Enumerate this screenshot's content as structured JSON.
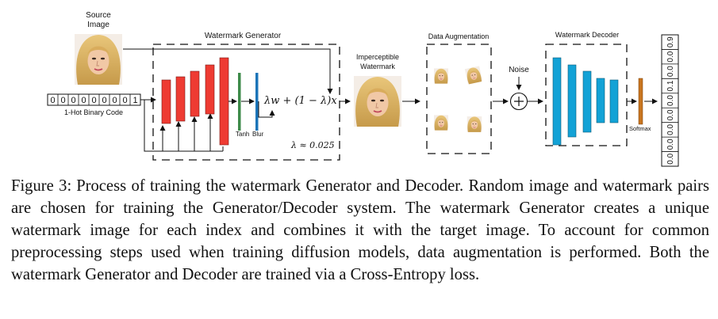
{
  "figure": {
    "source_image_label": [
      "Source",
      "Image"
    ],
    "binary_code_digits": [
      "0",
      "0",
      "0",
      "0",
      "0",
      "0",
      "0",
      "0",
      "1"
    ],
    "binary_code_label": "1-Hot Binary Code",
    "generator_title": "Watermark Generator",
    "tanh_label": "Tanh",
    "blur_label": "Blur",
    "blend_formula": "λw + (1 − λ)x",
    "lambda_note": "λ ≈ 0.025",
    "imperceptible_label": [
      "Imperceptible",
      "Watermark"
    ],
    "augmentation_title": "Data Augmentation",
    "noise_label": "Noise",
    "decoder_title": "Watermark Decoder",
    "softmax_label": "Softmax",
    "output_probabilities": [
      "0.9",
      "0.0",
      "0.0",
      "0.1",
      "0.0",
      "0.0",
      "0.0",
      "0.0",
      "0.0"
    ],
    "colors": {
      "generator_layers": "#ee3b32",
      "tanh_layer": "#3d8a49",
      "blur_layer": "#1b74b8",
      "decoder_layers": "#13a2d6",
      "softmax_layer": "#c8751f"
    }
  },
  "caption": {
    "label": "Figure 3:",
    "text": "Process of training the watermark Generator and Decoder. Random image and watermark pairs are chosen for training the Generator/Decoder system. The watermark Generator creates a unique watermark image for each index and combines it with the target image. To account for common preprocessing steps used when training diffusion models, data augmentation is performed. Both the watermark Generator and Decoder are trained via a Cross-Entropy loss."
  }
}
